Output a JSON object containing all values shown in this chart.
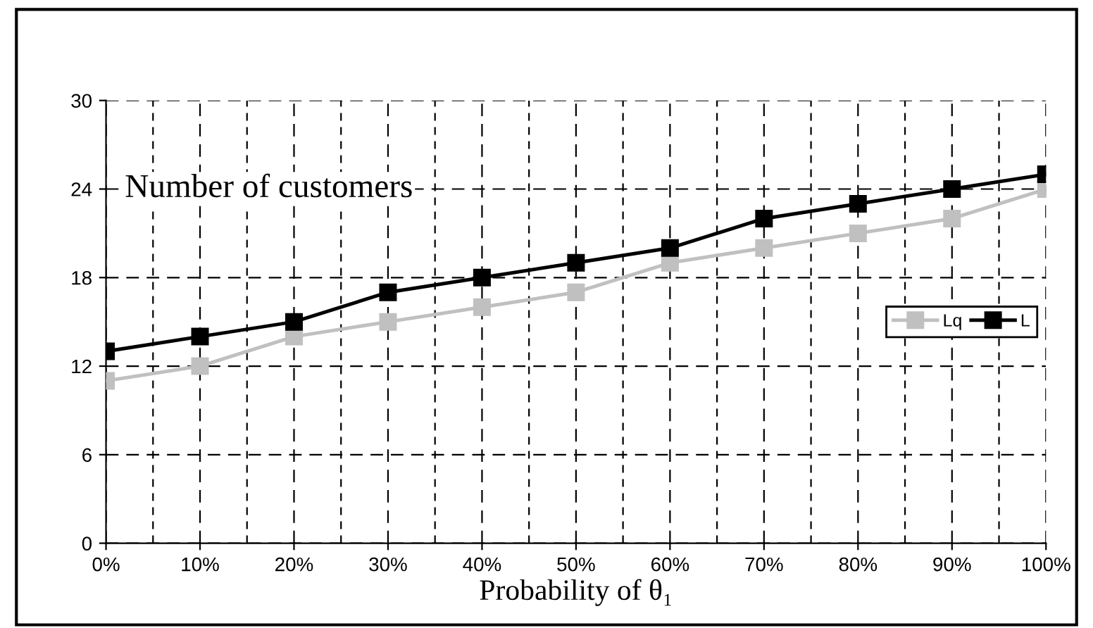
{
  "chart_data": {
    "type": "line",
    "xlabel": "Probability of θ₁",
    "ylabel": "Number of customers",
    "categories": [
      "0%",
      "10%",
      "20%",
      "30%",
      "40%",
      "50%",
      "60%",
      "70%",
      "80%",
      "90%",
      "100%"
    ],
    "series": [
      {
        "name": "Lq",
        "color": "#c0c0c0",
        "values": [
          11,
          12,
          14,
          15,
          16,
          17,
          19,
          20,
          21,
          22,
          24
        ]
      },
      {
        "name": "L",
        "color": "#000000",
        "values": [
          13,
          14,
          15,
          17,
          18,
          19,
          20,
          22,
          23,
          24,
          25
        ]
      }
    ],
    "ylim": [
      0,
      30
    ],
    "yticks": [
      0,
      6,
      12,
      18,
      24,
      30
    ],
    "grid": true,
    "legend": "right",
    "marker": "square",
    "line_style": "solid"
  }
}
